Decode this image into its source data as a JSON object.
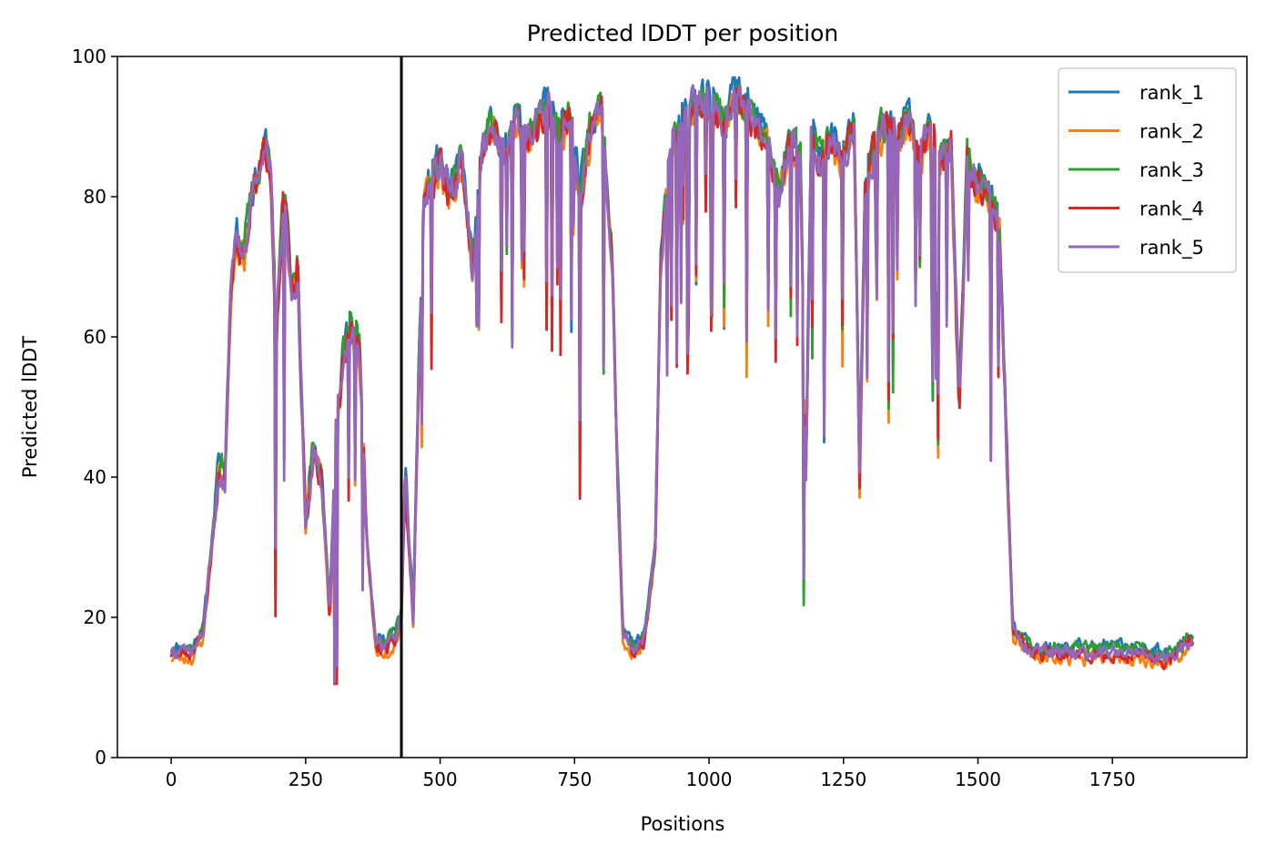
{
  "chart_data": {
    "type": "line",
    "title": "Predicted lDDT per position",
    "xlabel": "Positions",
    "ylabel": "Predicted lDDT",
    "xlim": [
      -100,
      2000
    ],
    "ylim": [
      0,
      100
    ],
    "xticks": [
      0,
      250,
      500,
      750,
      1000,
      1250,
      1500,
      1750
    ],
    "yticks": [
      0,
      20,
      40,
      60,
      80,
      100
    ],
    "grid": false,
    "legend_position": "top-right",
    "vline_x": 428,
    "x_max": 1900,
    "profile": [
      [
        0,
        15
      ],
      [
        20,
        15
      ],
      [
        40,
        15
      ],
      [
        60,
        18
      ],
      [
        75,
        30
      ],
      [
        90,
        42
      ],
      [
        100,
        40
      ],
      [
        110,
        65
      ],
      [
        120,
        75
      ],
      [
        135,
        72
      ],
      [
        150,
        80
      ],
      [
        165,
        84
      ],
      [
        175,
        87
      ],
      [
        185,
        85
      ],
      [
        195,
        60
      ],
      [
        210,
        82
      ],
      [
        225,
        65
      ],
      [
        235,
        70
      ],
      [
        250,
        33
      ],
      [
        265,
        44
      ],
      [
        280,
        40
      ],
      [
        295,
        20
      ],
      [
        305,
        45
      ],
      [
        320,
        57
      ],
      [
        335,
        62
      ],
      [
        350,
        58
      ],
      [
        365,
        30
      ],
      [
        380,
        16
      ],
      [
        400,
        16
      ],
      [
        415,
        17
      ],
      [
        428,
        20
      ],
      [
        435,
        40
      ],
      [
        450,
        20
      ],
      [
        460,
        55
      ],
      [
        470,
        80
      ],
      [
        500,
        85
      ],
      [
        520,
        80
      ],
      [
        540,
        85
      ],
      [
        560,
        70
      ],
      [
        580,
        88
      ],
      [
        600,
        90
      ],
      [
        620,
        85
      ],
      [
        640,
        92
      ],
      [
        660,
        88
      ],
      [
        680,
        90
      ],
      [
        700,
        93
      ],
      [
        720,
        88
      ],
      [
        740,
        92
      ],
      [
        760,
        80
      ],
      [
        780,
        90
      ],
      [
        800,
        93
      ],
      [
        820,
        70
      ],
      [
        830,
        40
      ],
      [
        840,
        18
      ],
      [
        860,
        15
      ],
      [
        880,
        17
      ],
      [
        900,
        30
      ],
      [
        910,
        70
      ],
      [
        930,
        88
      ],
      [
        950,
        90
      ],
      [
        970,
        93
      ],
      [
        990,
        94
      ],
      [
        1010,
        92
      ],
      [
        1030,
        90
      ],
      [
        1050,
        95
      ],
      [
        1070,
        92
      ],
      [
        1090,
        90
      ],
      [
        1110,
        88
      ],
      [
        1130,
        80
      ],
      [
        1150,
        88
      ],
      [
        1170,
        85
      ],
      [
        1180,
        40
      ],
      [
        1190,
        88
      ],
      [
        1210,
        85
      ],
      [
        1230,
        88
      ],
      [
        1250,
        85
      ],
      [
        1270,
        90
      ],
      [
        1280,
        40
      ],
      [
        1290,
        80
      ],
      [
        1310,
        88
      ],
      [
        1330,
        90
      ],
      [
        1350,
        88
      ],
      [
        1370,
        92
      ],
      [
        1390,
        85
      ],
      [
        1410,
        90
      ],
      [
        1430,
        85
      ],
      [
        1450,
        88
      ],
      [
        1465,
        50
      ],
      [
        1480,
        85
      ],
      [
        1500,
        82
      ],
      [
        1520,
        80
      ],
      [
        1540,
        75
      ],
      [
        1555,
        40
      ],
      [
        1565,
        18
      ],
      [
        1600,
        15
      ],
      [
        1700,
        15
      ],
      [
        1800,
        15
      ],
      [
        1850,
        14
      ],
      [
        1900,
        17
      ]
    ],
    "series": [
      {
        "name": "rank_1",
        "color": "#1f77b4",
        "seed": 11,
        "offset": 0.8
      },
      {
        "name": "rank_2",
        "color": "#ff7f0e",
        "seed": 23,
        "offset": -0.8
      },
      {
        "name": "rank_3",
        "color": "#2ca02c",
        "seed": 37,
        "offset": 0.5
      },
      {
        "name": "rank_4",
        "color": "#d62728",
        "seed": 51,
        "offset": -0.3
      },
      {
        "name": "rank_5",
        "color": "#9467bd",
        "seed": 73,
        "offset": 0.0
      }
    ]
  }
}
